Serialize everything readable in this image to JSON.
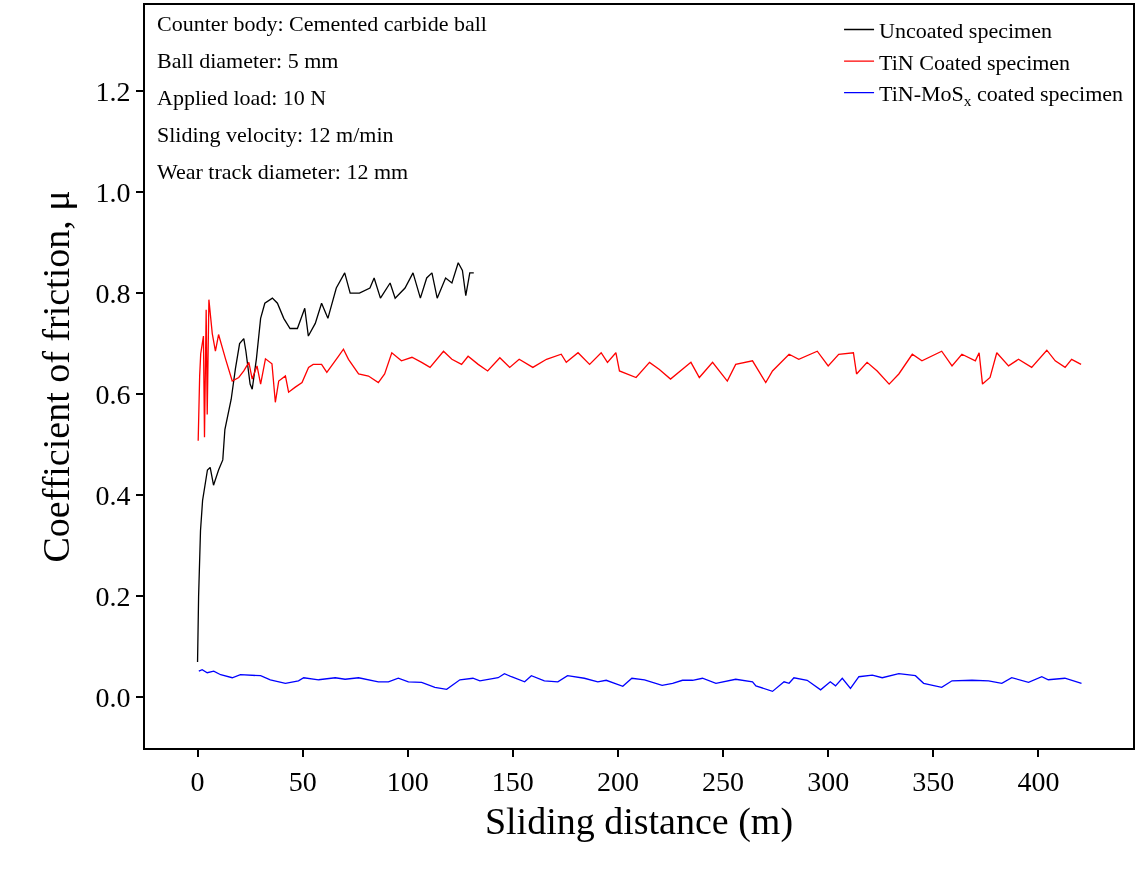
{
  "chart_data": {
    "type": "line",
    "xlabel": "Sliding distance (m)",
    "ylabel": "Coefficient of friction, μ",
    "xlim": [
      -25,
      445
    ],
    "xticks": [
      0,
      50,
      100,
      150,
      200,
      250,
      300,
      350,
      400
    ],
    "ylim": [
      -0.1,
      1.37
    ],
    "yticks": [
      {
        "value": 0,
        "label": "0.0"
      },
      {
        "value": 0.2,
        "label": "0.2"
      },
      {
        "value": 0.4,
        "label": "0.4"
      },
      {
        "value": 0.6,
        "label": "0.6"
      },
      {
        "value": 0.8,
        "label": "0.8"
      },
      {
        "value": 1.0,
        "label": "1.0"
      },
      {
        "value": 1.2,
        "label": "1.2"
      }
    ],
    "grid": false,
    "legend": "top right",
    "marker": "none",
    "line_style": "solid",
    "annotations": [
      "Counter body: Cemented carbide ball",
      "Ball diameter: 5 mm",
      "Applied load: 10 N",
      "Sliding velocity: 12 m/min",
      "Wear track diameter: 12 mm"
    ],
    "series": [
      {
        "name": "Uncoated specimen",
        "color": "#000000",
        "x": [
          0,
          0.5,
          1.4,
          2.4,
          4.7,
          6,
          7.6,
          10,
          12,
          13,
          16,
          18,
          20,
          22,
          23,
          25,
          26,
          28,
          30,
          32,
          35.6,
          38,
          41,
          44,
          47.5,
          51,
          52.7,
          56,
          59,
          62,
          66,
          70,
          72.6,
          77,
          82,
          84,
          87,
          91.6,
          94,
          98.7,
          102.5,
          106,
          109,
          111.5,
          114,
          118,
          121,
          124,
          126,
          127.6,
          129.5,
          131.4
        ],
        "values": [
          0.07,
          0.2,
          0.33,
          0.39,
          0.45,
          0.455,
          0.42,
          0.45,
          0.47,
          0.53,
          0.59,
          0.65,
          0.7,
          0.71,
          0.685,
          0.62,
          0.61,
          0.67,
          0.75,
          0.78,
          0.79,
          0.78,
          0.75,
          0.73,
          0.73,
          0.77,
          0.715,
          0.74,
          0.78,
          0.75,
          0.81,
          0.84,
          0.8,
          0.8,
          0.81,
          0.83,
          0.79,
          0.82,
          0.79,
          0.81,
          0.84,
          0.79,
          0.83,
          0.84,
          0.79,
          0.83,
          0.82,
          0.86,
          0.845,
          0.795,
          0.84,
          0.84
        ]
      },
      {
        "name": "TiN Coated specimen",
        "color": "#ff0000",
        "x": [
          0.3,
          1,
          1.5,
          2.8,
          3.3,
          4.1,
          4.6,
          5.4,
          7,
          8.5,
          10,
          13.3,
          16.5,
          19.6,
          22,
          24.4,
          26,
          28.3,
          30,
          32.3,
          35.4,
          37,
          38.6,
          41.8,
          43.3,
          46.5,
          49.7,
          52.8,
          55,
          59,
          61.5,
          67,
          69.4,
          71.8,
          76.6,
          81.3,
          86,
          89,
          92.4,
          97,
          102,
          106.6,
          110.6,
          117,
          121,
          125.6,
          128.7,
          133.5,
          138,
          143.8,
          148.5,
          153,
          159.5,
          166,
          173,
          175.4,
          181,
          186.5,
          192,
          195,
          199,
          200.7,
          208.6,
          215,
          219.7,
          225,
          234.7,
          238.7,
          245,
          252,
          256,
          264,
          270.3,
          273.5,
          281.4,
          286,
          294.8,
          300,
          305,
          312,
          313.5,
          318.5,
          323.3,
          329,
          333.6,
          340,
          344.6,
          354,
          358.9,
          363.6,
          370,
          371.8,
          373.4,
          377,
          380.2,
          385.8,
          390.5,
          396.8,
          404,
          408,
          412.7,
          415.8,
          420.3
        ],
        "values": [
          0.508,
          0.636,
          0.68,
          0.715,
          0.515,
          0.767,
          0.56,
          0.787,
          0.72,
          0.685,
          0.718,
          0.67,
          0.626,
          0.633,
          0.646,
          0.663,
          0.63,
          0.656,
          0.62,
          0.67,
          0.66,
          0.584,
          0.626,
          0.636,
          0.604,
          0.614,
          0.623,
          0.653,
          0.659,
          0.659,
          0.643,
          0.675,
          0.689,
          0.669,
          0.64,
          0.636,
          0.623,
          0.64,
          0.682,
          0.666,
          0.673,
          0.663,
          0.653,
          0.685,
          0.669,
          0.659,
          0.675,
          0.659,
          0.646,
          0.672,
          0.653,
          0.669,
          0.653,
          0.669,
          0.679,
          0.663,
          0.682,
          0.659,
          0.682,
          0.663,
          0.682,
          0.646,
          0.633,
          0.663,
          0.649,
          0.63,
          0.663,
          0.633,
          0.663,
          0.626,
          0.659,
          0.666,
          0.623,
          0.646,
          0.679,
          0.669,
          0.685,
          0.656,
          0.679,
          0.682,
          0.64,
          0.663,
          0.646,
          0.62,
          0.64,
          0.679,
          0.666,
          0.685,
          0.656,
          0.679,
          0.666,
          0.682,
          0.62,
          0.633,
          0.682,
          0.656,
          0.669,
          0.653,
          0.687,
          0.666,
          0.653,
          0.669,
          0.659
        ]
      },
      {
        "name": "TiN-MoS$_{x}$ coated specimen",
        "color": "#0000ff",
        "x": [
          0.6,
          2.2,
          4.6,
          7.7,
          11,
          16.5,
          20.4,
          30,
          34.6,
          41.8,
          48,
          50.5,
          57.6,
          65.5,
          70.2,
          76.6,
          86,
          90.8,
          95.5,
          100.3,
          106.6,
          112.9,
          118.5,
          124.8,
          131,
          134.3,
          143,
          146,
          149.3,
          155.6,
          158.8,
          165,
          171.4,
          176,
          184,
          190.4,
          194.4,
          202.3,
          206.6,
          212.6,
          221,
          226,
          230.7,
          235.5,
          240.2,
          246.6,
          256,
          264,
          265.6,
          273.5,
          279,
          281.4,
          283.7,
          290,
          296.4,
          301,
          303.5,
          306.7,
          310.6,
          314.6,
          321,
          325.7,
          333.6,
          341.5,
          345.4,
          354,
          358.9,
          368.4,
          376.3,
          382.6,
          387.3,
          395.3,
          401.6,
          404.7,
          412.6,
          420.5
        ],
        "values": [
          0.052,
          0.055,
          0.049,
          0.052,
          0.045,
          0.039,
          0.045,
          0.043,
          0.035,
          0.028,
          0.033,
          0.039,
          0.035,
          0.039,
          0.036,
          0.039,
          0.031,
          0.031,
          0.038,
          0.031,
          0.03,
          0.02,
          0.016,
          0.035,
          0.038,
          0.033,
          0.039,
          0.047,
          0.041,
          0.031,
          0.043,
          0.033,
          0.031,
          0.043,
          0.038,
          0.031,
          0.034,
          0.022,
          0.038,
          0.035,
          0.024,
          0.028,
          0.034,
          0.034,
          0.038,
          0.028,
          0.036,
          0.031,
          0.023,
          0.012,
          0.031,
          0.028,
          0.039,
          0.034,
          0.015,
          0.031,
          0.023,
          0.038,
          0.018,
          0.041,
          0.044,
          0.039,
          0.047,
          0.043,
          0.028,
          0.02,
          0.033,
          0.034,
          0.033,
          0.028,
          0.039,
          0.03,
          0.041,
          0.035,
          0.038,
          0.028
        ]
      }
    ]
  }
}
